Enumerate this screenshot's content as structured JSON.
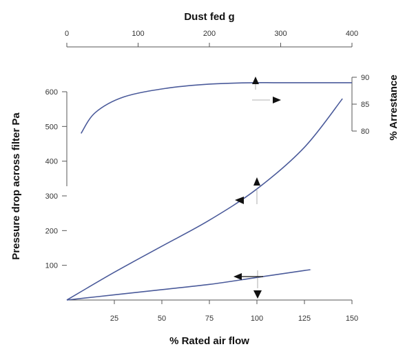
{
  "chart_data": {
    "type": "line",
    "axes": {
      "bottom": {
        "label": "% Rated air flow",
        "range": [
          0,
          150
        ],
        "ticks": [
          25,
          50,
          75,
          100,
          125,
          150
        ]
      },
      "left": {
        "label": "Pressure drop across filter Pa",
        "range": [
          0,
          600
        ],
        "ticks": [
          100,
          200,
          300,
          400,
          500,
          600
        ]
      },
      "top": {
        "label": "Dust fed g",
        "range": [
          0,
          400
        ],
        "ticks": [
          0,
          100,
          200,
          300,
          400
        ]
      },
      "right": {
        "label": "% Arrestance",
        "range": [
          80,
          90
        ],
        "ticks": [
          80,
          85,
          90
        ]
      }
    },
    "series": [
      {
        "axis_x": "bottom",
        "axis_y": "left",
        "points": [
          [
            0,
            0
          ],
          [
            25,
            15
          ],
          [
            50,
            30
          ],
          [
            75,
            45
          ],
          [
            100,
            65
          ],
          [
            125,
            85
          ],
          [
            128,
            87
          ]
        ]
      },
      {
        "axis_x": "bottom",
        "axis_y": "left",
        "points": [
          [
            0,
            0
          ],
          [
            25,
            80
          ],
          [
            50,
            155
          ],
          [
            75,
            230
          ],
          [
            100,
            320
          ],
          [
            125,
            440
          ],
          [
            145,
            580
          ]
        ]
      },
      {
        "axis_x": "top",
        "axis_y": "left",
        "points": [
          [
            20,
            480
          ],
          [
            40,
            540
          ],
          [
            80,
            585
          ],
          [
            140,
            610
          ],
          [
            200,
            622
          ],
          [
            260,
            626
          ],
          [
            300,
            626
          ],
          [
            400,
            626
          ]
        ]
      }
    ],
    "grid": false,
    "legend": "none"
  }
}
